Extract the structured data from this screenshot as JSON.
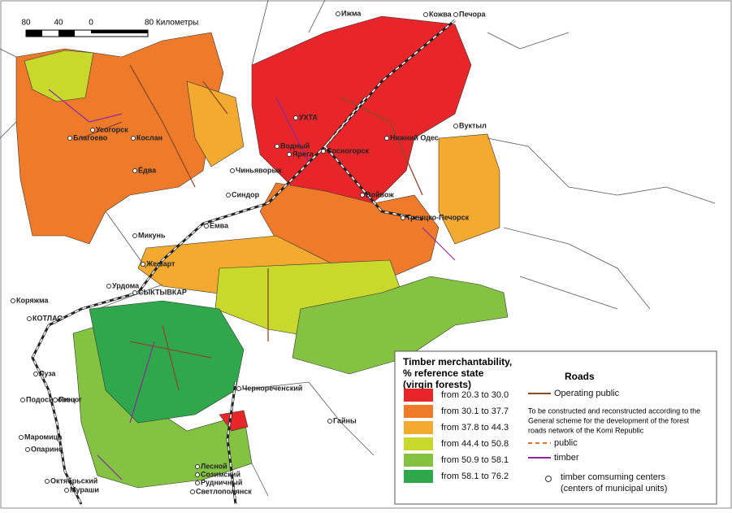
{
  "scale_bar": {
    "ticks": [
      "80",
      "40",
      "0"
    ],
    "unit_label": "80 Километры"
  },
  "places": [
    {
      "label": "Ижма"
    },
    {
      "label": "Кожва"
    },
    {
      "label": "Печора"
    },
    {
      "label": "УХТА"
    },
    {
      "label": "Сосногорск"
    },
    {
      "label": "Вуктыл"
    },
    {
      "label": "Нижний Одес"
    },
    {
      "label": "Водный"
    },
    {
      "label": "Ярега"
    },
    {
      "label": "Войвож"
    },
    {
      "label": "Чиньяворык"
    },
    {
      "label": "Синдор"
    },
    {
      "label": "Троицко-Печорск"
    },
    {
      "label": "Усогорск"
    },
    {
      "label": "Благоево"
    },
    {
      "label": "Кослан"
    },
    {
      "label": "Ёдва"
    },
    {
      "label": "Емва"
    },
    {
      "label": "Микунь"
    },
    {
      "label": "Жешарт"
    },
    {
      "label": "Урдома"
    },
    {
      "label": "СЫКТЫВКАР"
    },
    {
      "label": "Коряжма"
    },
    {
      "label": "КОТЛАС"
    },
    {
      "label": "Луза"
    },
    {
      "label": "Подосиновец"
    },
    {
      "label": "Пинюг"
    },
    {
      "label": "Маромица"
    },
    {
      "label": "Опарино"
    },
    {
      "label": "Октябрьский"
    },
    {
      "label": "Мураши"
    },
    {
      "label": "Лесной"
    },
    {
      "label": "Созимский"
    },
    {
      "label": "Рудничный"
    },
    {
      "label": "Светлополянск"
    },
    {
      "label": "Гайны"
    },
    {
      "label": "Чернореченский"
    }
  ],
  "legend": {
    "title": [
      "Timber merchantability,",
      "% reference state",
      "(virgin forests)"
    ],
    "classes": [
      {
        "label": "from 20.3 to 30.0",
        "color": "#e8262a"
      },
      {
        "label": "from 30.1 to 37.7",
        "color": "#ef7a2a"
      },
      {
        "label": "from 37.8 to 44.3",
        "color": "#f4a92f"
      },
      {
        "label": "from 44.4 to 50.8",
        "color": "#c9d92c"
      },
      {
        "label": "from 50.9 to 58.1",
        "color": "#84c341"
      },
      {
        "label": "from 58.1 to 76.2",
        "color": "#2ea84a"
      }
    ],
    "roads_title": "Roads",
    "operating": "Operating public",
    "note": [
      "To be constructed and reconstructed according to the",
      "General scheme for the development of the forest",
      "roads network of the Komi Republic"
    ],
    "public": "public",
    "timber": "timber",
    "centers": [
      "timber comsuming centers",
      "(centers of municipal units)"
    ]
  }
}
